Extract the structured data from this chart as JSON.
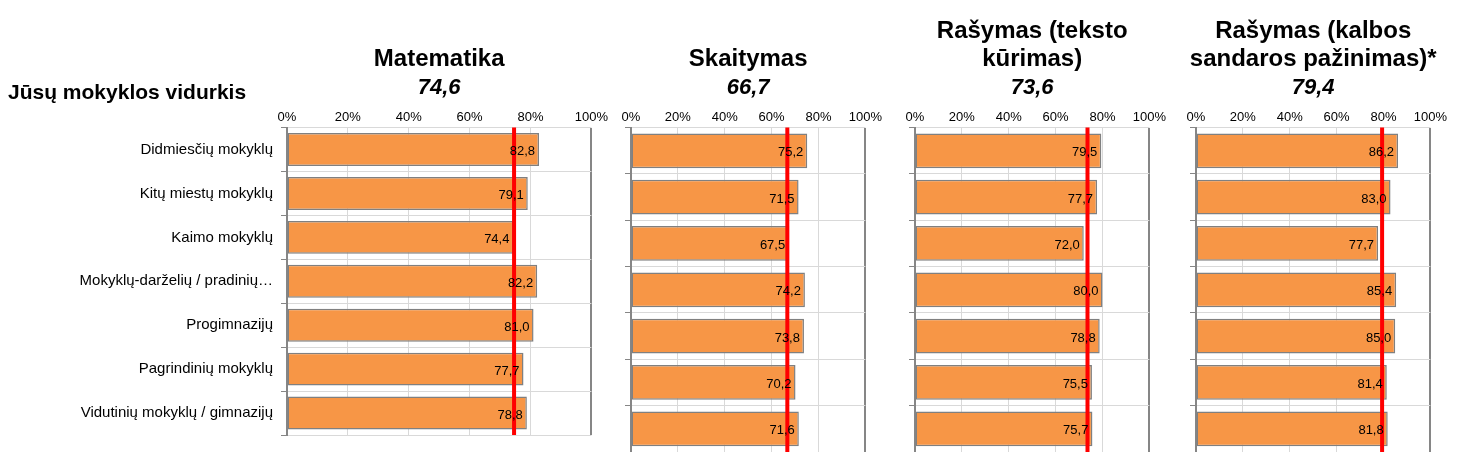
{
  "chart_data": [
    {
      "type": "bar",
      "orientation": "horizontal",
      "title": "Matematika",
      "annotations": [
        "Jūsų mokyklos vidurkis"
      ],
      "categories": [
        "Didmiesčių mokyklų",
        "Kitų miestų mokyklų",
        "Kaimo mokyklų",
        "Mokyklų-darželių / pradinių…",
        "Progimnazijų",
        "Pagrindinių mokyklų",
        "Vidutinių mokyklų / gimnazijų"
      ],
      "values": [
        82.8,
        79.1,
        74.4,
        82.2,
        81.0,
        77.7,
        78.8
      ],
      "value_labels": [
        "82,8",
        "79,1",
        "74,4",
        "82,2",
        "81,0",
        "77,7",
        "78,8"
      ],
      "color": "#f79646",
      "xlim": [
        0,
        100
      ],
      "xticks": [
        {
          "value": 0,
          "label": "0%"
        },
        {
          "value": 20,
          "label": "20%"
        },
        {
          "value": 40,
          "label": "40%"
        },
        {
          "value": 60,
          "label": "60%"
        },
        {
          "value": 80,
          "label": "80%"
        },
        {
          "value": 100,
          "label": "100%"
        }
      ],
      "grid": true,
      "ref_lines": [
        {
          "axis": "x",
          "value": 74.6,
          "label": "74,6",
          "color": "#ff0000"
        }
      ]
    },
    {
      "type": "bar",
      "orientation": "horizontal",
      "title": "Skaitymas",
      "categories": [
        null,
        null,
        null,
        null,
        null,
        null,
        null
      ],
      "tick_labels": "x",
      "values": [
        75.2,
        71.5,
        67.5,
        74.2,
        73.8,
        70.2,
        71.6
      ],
      "value_labels": [
        "75,2",
        "71,5",
        "67,5",
        "74,2",
        "73,8",
        "70,2",
        "71,6"
      ],
      "color": "#f79646",
      "xlim": [
        0,
        100
      ],
      "xticks": [
        {
          "value": 0,
          "label": "0%"
        },
        {
          "value": 20,
          "label": "20%"
        },
        {
          "value": 40,
          "label": "40%"
        },
        {
          "value": 60,
          "label": "60%"
        },
        {
          "value": 80,
          "label": "80%"
        },
        {
          "value": 100,
          "label": "100%"
        }
      ],
      "grid": true,
      "ref_lines": [
        {
          "axis": "x",
          "value": 66.7,
          "label": "66,7",
          "color": "#ff0000"
        }
      ]
    },
    {
      "type": "bar",
      "orientation": "horizontal",
      "title": "Rašymas (teksto kūrimas)",
      "categories": [
        null,
        null,
        null,
        null,
        null,
        null,
        null
      ],
      "tick_labels": "x",
      "values": [
        79.5,
        77.7,
        72.0,
        80.0,
        78.8,
        75.5,
        75.7
      ],
      "value_labels": [
        "79,5",
        "77,7",
        "72,0",
        "80,0",
        "78,8",
        "75,5",
        "75,7"
      ],
      "color": "#f79646",
      "xlim": [
        0,
        100
      ],
      "xticks": [
        {
          "value": 0,
          "label": "0%"
        },
        {
          "value": 20,
          "label": "20%"
        },
        {
          "value": 40,
          "label": "40%"
        },
        {
          "value": 60,
          "label": "60%"
        },
        {
          "value": 80,
          "label": "80%"
        },
        {
          "value": 100,
          "label": "100%"
        }
      ],
      "grid": true,
      "ref_lines": [
        {
          "axis": "x",
          "value": 73.6,
          "label": "73,6",
          "color": "#ff0000"
        }
      ]
    },
    {
      "type": "bar",
      "orientation": "horizontal",
      "title": "Rašymas (kalbos sandaros pažinimas)*",
      "categories": [
        null,
        null,
        null,
        null,
        null,
        null,
        null
      ],
      "tick_labels": "x",
      "values": [
        86.2,
        83.0,
        77.7,
        85.4,
        85.0,
        81.4,
        81.8
      ],
      "value_labels": [
        "86,2",
        "83,0",
        "77,7",
        "85,4",
        "85,0",
        "81,4",
        "81,8"
      ],
      "color": "#f79646",
      "xlim": [
        0,
        100
      ],
      "xticks": [
        {
          "value": 0,
          "label": "0%"
        },
        {
          "value": 20,
          "label": "20%"
        },
        {
          "value": 40,
          "label": "40%"
        },
        {
          "value": 60,
          "label": "60%"
        },
        {
          "value": 80,
          "label": "80%"
        },
        {
          "value": 100,
          "label": "100%"
        }
      ],
      "grid": true,
      "ref_lines": [
        {
          "axis": "x",
          "value": 79.4,
          "label": "79,4",
          "color": "#ff0000"
        }
      ]
    }
  ]
}
